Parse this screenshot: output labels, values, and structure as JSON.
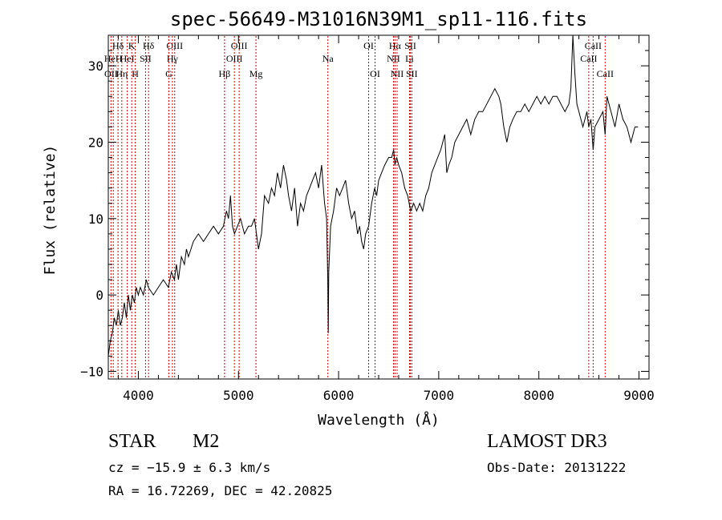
{
  "chart_data": {
    "type": "line",
    "title": "spec-56649-M31016N39M1_sp11-116.fits",
    "xlabel": "Wavelength (Å)",
    "ylabel": "Flux (relative)",
    "xlim": [
      3700,
      9100
    ],
    "ylim": [
      -11,
      34
    ],
    "x_ticks": [
      4000,
      5000,
      6000,
      7000,
      8000,
      9000
    ],
    "y_ticks": [
      -10,
      0,
      10,
      20,
      30
    ],
    "grid": false,
    "line_color": "#000000",
    "marker_color": "#cc0000",
    "series": [
      {
        "name": "spectrum",
        "points": [
          [
            3700,
            -8
          ],
          [
            3720,
            -6
          ],
          [
            3740,
            -5
          ],
          [
            3760,
            -3
          ],
          [
            3780,
            -4
          ],
          [
            3800,
            -2
          ],
          [
            3820,
            -4
          ],
          [
            3840,
            -3
          ],
          [
            3860,
            -1
          ],
          [
            3880,
            -3
          ],
          [
            3900,
            0
          ],
          [
            3920,
            -2
          ],
          [
            3940,
            0
          ],
          [
            3960,
            -1
          ],
          [
            3980,
            1
          ],
          [
            4000,
            0
          ],
          [
            4020,
            1
          ],
          [
            4050,
            0
          ],
          [
            4080,
            2
          ],
          [
            4100,
            1
          ],
          [
            4150,
            0
          ],
          [
            4200,
            1
          ],
          [
            4250,
            2
          ],
          [
            4300,
            1
          ],
          [
            4330,
            3
          ],
          [
            4360,
            2
          ],
          [
            4380,
            4
          ],
          [
            4400,
            2
          ],
          [
            4430,
            5
          ],
          [
            4460,
            4
          ],
          [
            4480,
            6
          ],
          [
            4500,
            5
          ],
          [
            4550,
            7
          ],
          [
            4600,
            8
          ],
          [
            4650,
            7
          ],
          [
            4700,
            8
          ],
          [
            4750,
            9
          ],
          [
            4800,
            8
          ],
          [
            4850,
            9
          ],
          [
            4880,
            11
          ],
          [
            4900,
            10
          ],
          [
            4920,
            13
          ],
          [
            4940,
            9
          ],
          [
            4960,
            8
          ],
          [
            4990,
            9
          ],
          [
            5020,
            10
          ],
          [
            5060,
            8
          ],
          [
            5100,
            9
          ],
          [
            5130,
            9
          ],
          [
            5160,
            10
          ],
          [
            5180,
            8
          ],
          [
            5200,
            6
          ],
          [
            5230,
            8
          ],
          [
            5260,
            13
          ],
          [
            5300,
            12
          ],
          [
            5330,
            14
          ],
          [
            5360,
            13
          ],
          [
            5390,
            16
          ],
          [
            5420,
            14
          ],
          [
            5450,
            17
          ],
          [
            5480,
            15
          ],
          [
            5500,
            13
          ],
          [
            5530,
            11
          ],
          [
            5560,
            14
          ],
          [
            5590,
            9
          ],
          [
            5620,
            12
          ],
          [
            5650,
            11
          ],
          [
            5680,
            13
          ],
          [
            5710,
            14
          ],
          [
            5740,
            15
          ],
          [
            5770,
            16
          ],
          [
            5800,
            14
          ],
          [
            5830,
            17
          ],
          [
            5860,
            12
          ],
          [
            5880,
            10
          ],
          [
            5892,
            2
          ],
          [
            5897,
            -5
          ],
          [
            5902,
            3
          ],
          [
            5920,
            9
          ],
          [
            5950,
            11
          ],
          [
            5980,
            14
          ],
          [
            6010,
            13
          ],
          [
            6040,
            14
          ],
          [
            6070,
            15
          ],
          [
            6100,
            12
          ],
          [
            6130,
            10
          ],
          [
            6160,
            11
          ],
          [
            6190,
            8
          ],
          [
            6210,
            9
          ],
          [
            6230,
            7
          ],
          [
            6250,
            6
          ],
          [
            6270,
            8
          ],
          [
            6300,
            9
          ],
          [
            6330,
            12
          ],
          [
            6360,
            14
          ],
          [
            6380,
            13
          ],
          [
            6400,
            15
          ],
          [
            6430,
            16
          ],
          [
            6460,
            17
          ],
          [
            6500,
            18
          ],
          [
            6530,
            18
          ],
          [
            6550,
            19
          ],
          [
            6563,
            17
          ],
          [
            6580,
            18
          ],
          [
            6600,
            17
          ],
          [
            6630,
            16
          ],
          [
            6660,
            14
          ],
          [
            6690,
            13
          ],
          [
            6720,
            11
          ],
          [
            6750,
            12
          ],
          [
            6780,
            11
          ],
          [
            6810,
            12
          ],
          [
            6840,
            11
          ],
          [
            6870,
            13
          ],
          [
            6900,
            14
          ],
          [
            6930,
            16
          ],
          [
            6960,
            17
          ],
          [
            6990,
            18
          ],
          [
            7020,
            19
          ],
          [
            7040,
            20
          ],
          [
            7060,
            21
          ],
          [
            7080,
            16
          ],
          [
            7100,
            17
          ],
          [
            7130,
            18
          ],
          [
            7160,
            20
          ],
          [
            7200,
            21
          ],
          [
            7240,
            22
          ],
          [
            7280,
            23
          ],
          [
            7320,
            21
          ],
          [
            7360,
            23
          ],
          [
            7400,
            24
          ],
          [
            7440,
            24
          ],
          [
            7480,
            25
          ],
          [
            7520,
            26
          ],
          [
            7560,
            27
          ],
          [
            7600,
            26
          ],
          [
            7620,
            25
          ],
          [
            7650,
            22
          ],
          [
            7680,
            20
          ],
          [
            7710,
            22
          ],
          [
            7740,
            23
          ],
          [
            7780,
            24
          ],
          [
            7820,
            24
          ],
          [
            7860,
            25
          ],
          [
            7900,
            24
          ],
          [
            7940,
            25
          ],
          [
            7980,
            26
          ],
          [
            8020,
            25
          ],
          [
            8060,
            26
          ],
          [
            8100,
            25
          ],
          [
            8140,
            26
          ],
          [
            8180,
            26
          ],
          [
            8220,
            25
          ],
          [
            8260,
            24
          ],
          [
            8300,
            25
          ],
          [
            8320,
            27
          ],
          [
            8340,
            34
          ],
          [
            8360,
            29
          ],
          [
            8380,
            25
          ],
          [
            8400,
            24
          ],
          [
            8420,
            23
          ],
          [
            8440,
            22
          ],
          [
            8460,
            23
          ],
          [
            8480,
            24
          ],
          [
            8498,
            22
          ],
          [
            8520,
            23
          ],
          [
            8542,
            19
          ],
          [
            8560,
            22
          ],
          [
            8600,
            23
          ],
          [
            8640,
            24
          ],
          [
            8662,
            21
          ],
          [
            8680,
            26
          ],
          [
            8720,
            24
          ],
          [
            8760,
            22
          ],
          [
            8800,
            25
          ],
          [
            8840,
            23
          ],
          [
            8880,
            22
          ],
          [
            8920,
            20
          ],
          [
            8960,
            22
          ],
          [
            8990,
            22
          ]
        ]
      }
    ],
    "lines": [
      {
        "label": "Hδ",
        "wl": 3797,
        "row": 0
      },
      {
        "label": "K",
        "wl": 3934,
        "row": 0
      },
      {
        "label": "Hδ",
        "wl": 4102,
        "row": 0
      },
      {
        "label": "OIII",
        "wl": 4363,
        "row": 0
      },
      {
        "label": "OIII",
        "wl": 5007,
        "row": 0
      },
      {
        "label": "OI",
        "wl": 6300,
        "row": 0
      },
      {
        "label": "Hα",
        "wl": 6563,
        "row": 0
      },
      {
        "label": "SII",
        "wl": 6717,
        "row": 0
      },
      {
        "label": "CaII",
        "wl": 8542,
        "row": 0
      },
      {
        "label": "HeH",
        "wl": 3750,
        "row": 1
      },
      {
        "label": "HeI",
        "wl": 3889,
        "row": 1
      },
      {
        "label": "SII",
        "wl": 4072,
        "row": 1
      },
      {
        "label": "Hγ",
        "wl": 4340,
        "row": 1
      },
      {
        "label": "OIII",
        "wl": 4959,
        "row": 1
      },
      {
        "label": "Na",
        "wl": 5893,
        "row": 1
      },
      {
        "label": "NII",
        "wl": 6548,
        "row": 1
      },
      {
        "label": "Li",
        "wl": 6708,
        "row": 1
      },
      {
        "label": "CaII",
        "wl": 8498,
        "row": 1
      },
      {
        "label": "OII",
        "wl": 3727,
        "row": 2
      },
      {
        "label": "Hη",
        "wl": 3835,
        "row": 2
      },
      {
        "label": "H",
        "wl": 3969,
        "row": 2
      },
      {
        "label": "G",
        "wl": 4305,
        "row": 2
      },
      {
        "label": "Hβ",
        "wl": 4861,
        "row": 2
      },
      {
        "label": "Mg",
        "wl": 5175,
        "row": 2
      },
      {
        "label": "OI",
        "wl": 6364,
        "row": 2
      },
      {
        "label": "NII",
        "wl": 6584,
        "row": 2
      },
      {
        "label": "SII",
        "wl": 6731,
        "row": 2
      },
      {
        "label": "CaII",
        "wl": 8662,
        "row": 2
      }
    ]
  },
  "info": {
    "object_class": "STAR",
    "subclass": "M2",
    "velocity": "cz = −15.9 ± 6.3 km/s",
    "coords": "RA =  16.72269, DEC =  42.20825",
    "survey": "LAMOST DR3",
    "obs_date": "Obs-Date: 20131222"
  }
}
